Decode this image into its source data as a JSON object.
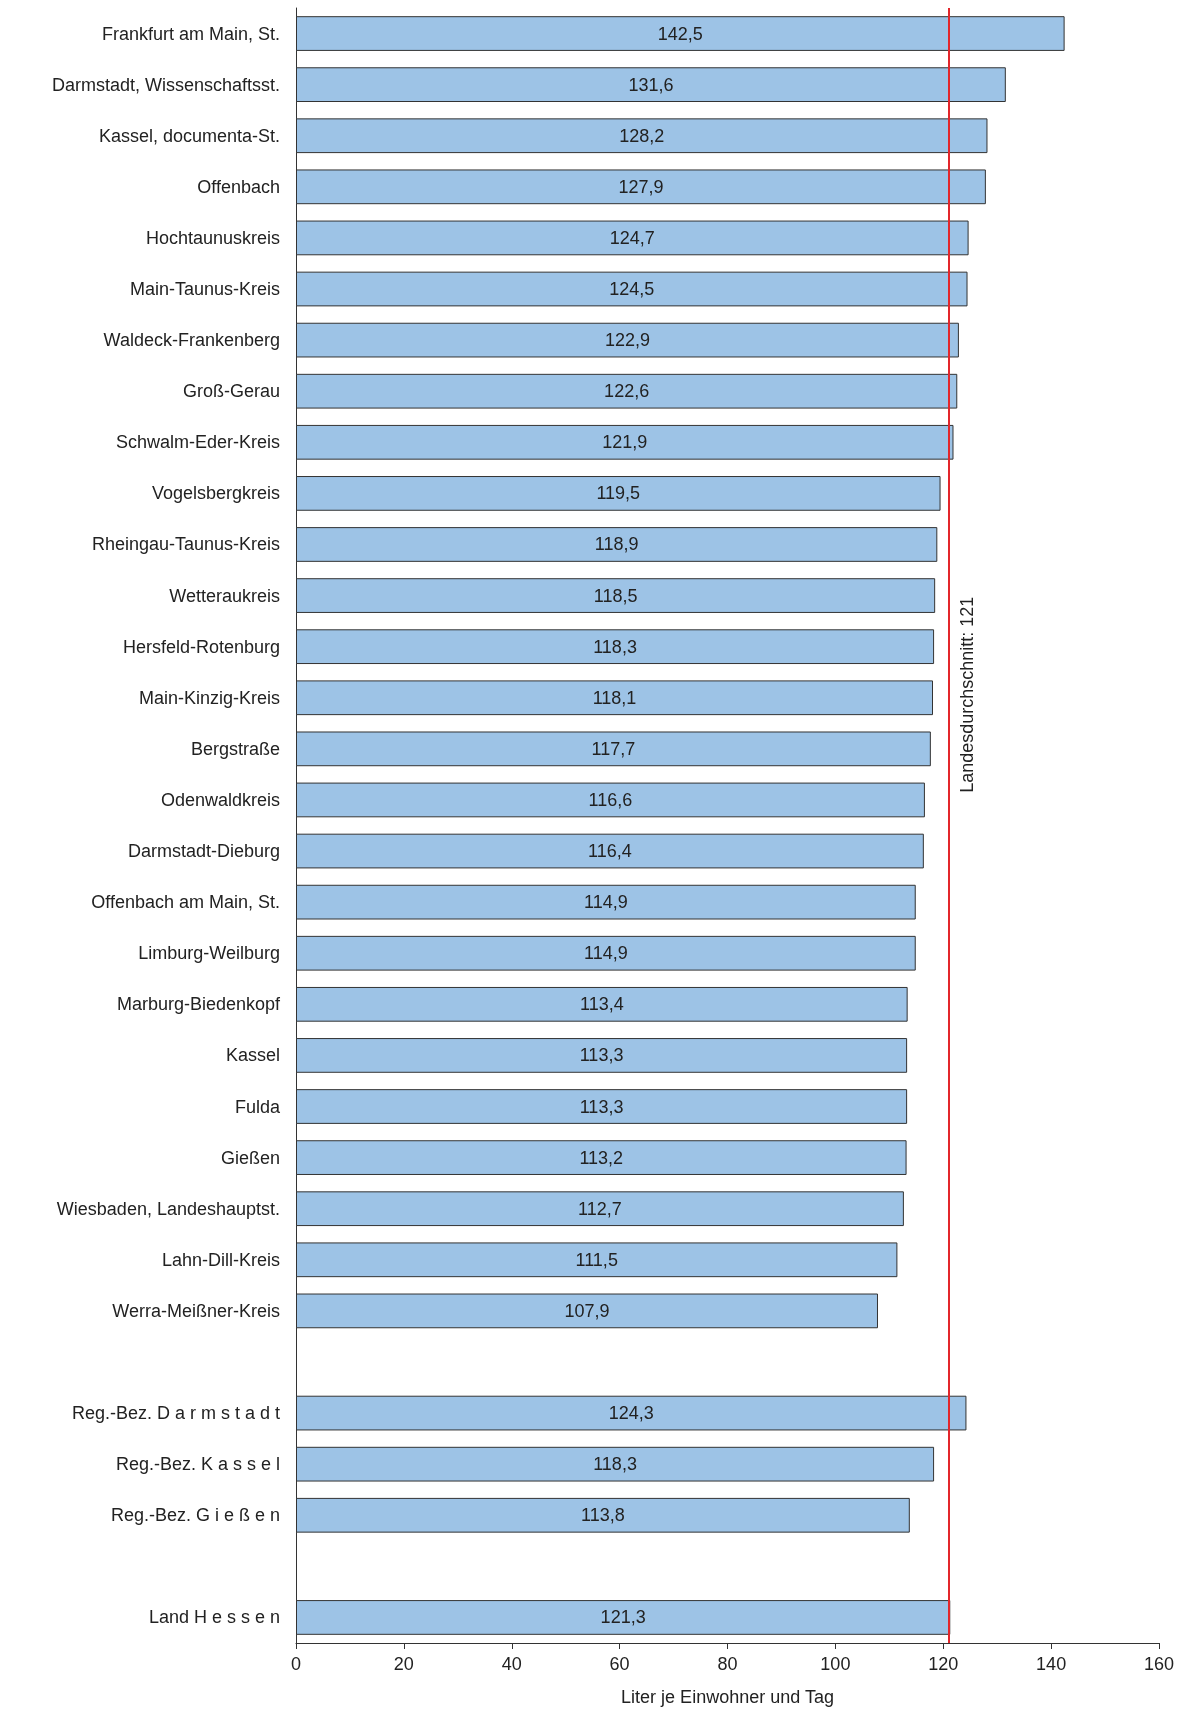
{
  "chart_data": {
    "type": "bar",
    "orientation": "horizontal",
    "xlabel": "Liter je Einwohner und Tag",
    "categories": [
      "Frankfurt am Main, St.",
      "Darmstadt, Wissenschaftsst.",
      "Kassel, documenta-St.",
      "Offenbach",
      "Hochtaunuskreis",
      "Main-Taunus-Kreis",
      "Waldeck-Frankenberg",
      "Groß-Gerau",
      "Schwalm-Eder-Kreis",
      "Vogelsbergkreis",
      "Rheingau-Taunus-Kreis",
      "Wetteraukreis",
      "Hersfeld-Rotenburg",
      "Main-Kinzig-Kreis",
      "Bergstraße",
      "Odenwaldkreis",
      "Darmstadt-Dieburg",
      "Offenbach am Main, St.",
      "Limburg-Weilburg",
      "Marburg-Biedenkopf",
      "Kassel",
      "Fulda",
      "Gießen",
      "Wiesbaden, Landeshauptst.",
      "Lahn-Dill-Kreis",
      "Werra-Meißner-Kreis",
      null,
      "Reg.-Bez. D a r m s t a d t",
      "Reg.-Bez. K a s s e l",
      "Reg.-Bez. G i e ß e n",
      null,
      "Land H e s s e n"
    ],
    "values": [
      142.5,
      131.6,
      128.2,
      127.9,
      124.7,
      124.5,
      122.9,
      122.6,
      121.9,
      119.5,
      118.9,
      118.5,
      118.3,
      118.1,
      117.7,
      116.6,
      116.4,
      114.9,
      114.9,
      113.4,
      113.3,
      113.3,
      113.2,
      112.7,
      111.5,
      107.9,
      null,
      124.3,
      118.3,
      113.8,
      null,
      121.3
    ],
    "value_labels": [
      "142,5",
      "131,6",
      "128,2",
      "127,9",
      "124,7",
      "124,5",
      "122,9",
      "122,6",
      "121,9",
      "119,5",
      "118,9",
      "118,5",
      "118,3",
      "118,1",
      "117,7",
      "116,6",
      "116,4",
      "114,9",
      "114,9",
      "113,4",
      "113,3",
      "113,3",
      "113,2",
      "112,7",
      "111,5",
      "107,9",
      null,
      "124,3",
      "118,3",
      "113,8",
      null,
      "121,3"
    ],
    "color": "#9dc3e6",
    "xlim": [
      0,
      160
    ],
    "xticks": [
      0,
      20,
      40,
      60,
      80,
      100,
      120,
      140,
      160
    ],
    "ref_lines": [
      {
        "axis": "x",
        "value": 121,
        "label": "Landesdurchschnitt: 121",
        "color": "#e3262b"
      }
    ],
    "grid": false
  }
}
